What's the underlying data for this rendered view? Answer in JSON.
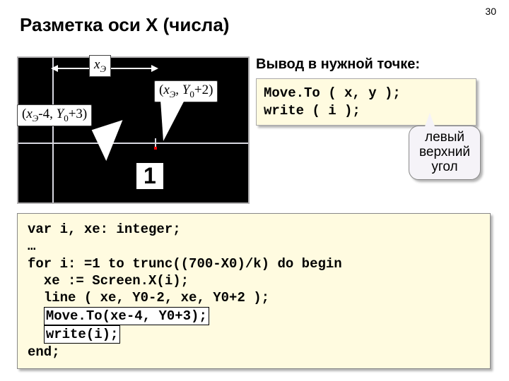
{
  "page_number": "30",
  "title": "Разметка оси X (числа)",
  "diagram": {
    "x_label_html": "x<span class='sub'>Э</span>",
    "callout1_html": "<span class='nonit'>(</span>x<span class='sub'>Э</span><span class='nonit'>, </span>Y<span class='sub nonit'>0</span><span class='nonit'>+2)</span>",
    "callout2_html": "<span class='nonit'>(</span>x<span class='sub'>Э</span><span class='nonit'>-4, </span>Y<span class='sub nonit'>0</span><span class='nonit'>+3)</span>",
    "number_label": "1"
  },
  "right": {
    "subtitle": "Вывод в нужной точке:",
    "code_line1": "Move.To ( x, y );",
    "code_line2": "write ( i );",
    "annotation_l1": "левый",
    "annotation_l2": "верхний",
    "annotation_l3": "угол"
  },
  "code": {
    "l1": "var i, xe: integer;",
    "l2": "…",
    "l3": "for i: =1 to trunc((700-X0)/k) do begin",
    "l4": "  xe := Screen.X(i);",
    "l5": "  line ( xe, Y0-2, xe, Y0+2 );",
    "l6a": "Move.To(xe-4, Y0+3);",
    "l7a": "write(i);",
    "l8": "end;"
  }
}
